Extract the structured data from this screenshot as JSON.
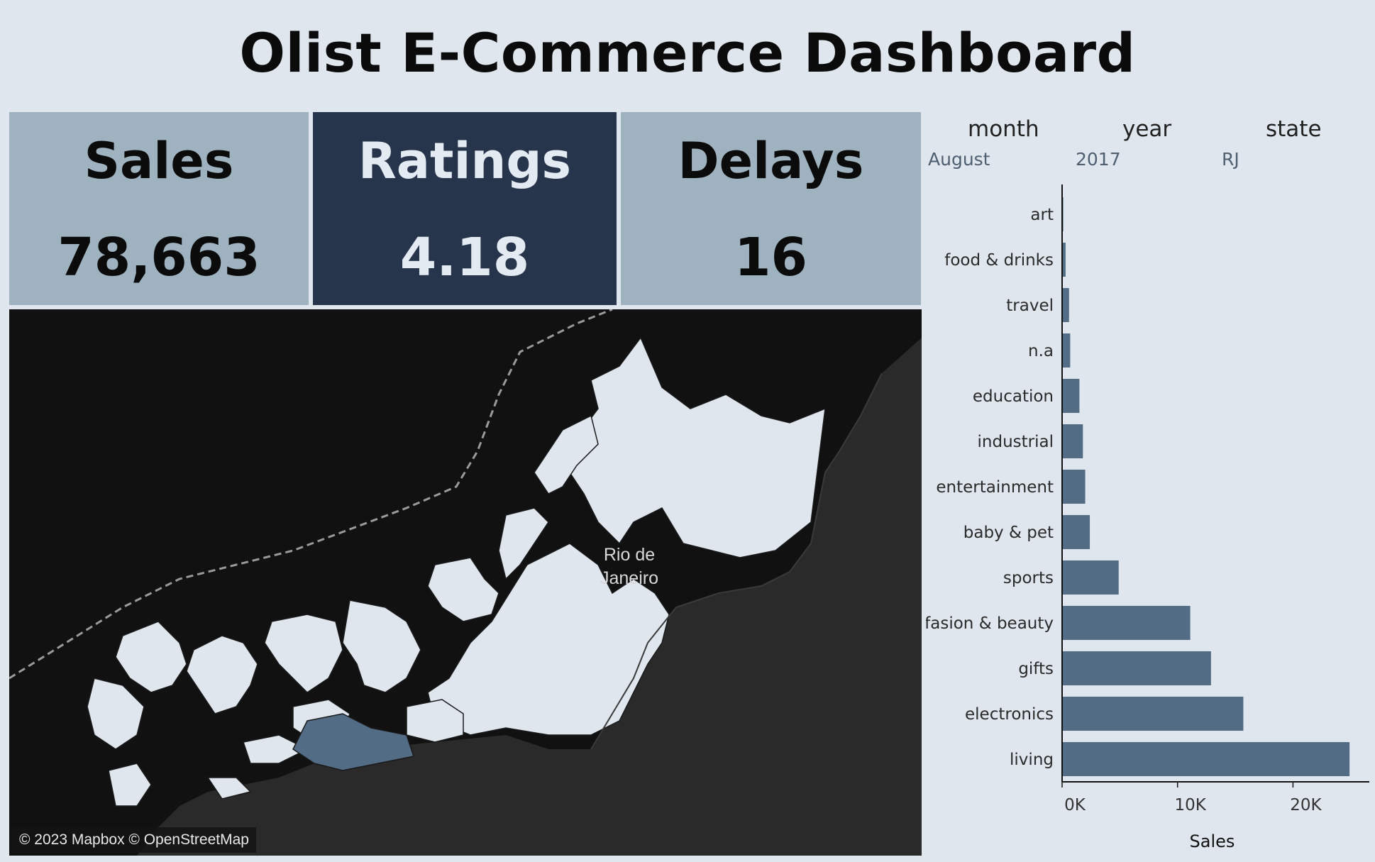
{
  "title": "Olist E-Commerce Dashboard",
  "kpis": {
    "sales": {
      "label": "Sales",
      "value": "78,663"
    },
    "ratings": {
      "label": "Ratings",
      "value": "4.18"
    },
    "delays": {
      "label": "Delays",
      "value": "16"
    }
  },
  "filters": {
    "month": {
      "label": "month",
      "value": "August"
    },
    "year": {
      "label": "year",
      "value": "2017"
    },
    "state": {
      "label": "state",
      "value": "RJ"
    }
  },
  "map": {
    "city_label_line1": "Rio de",
    "city_label_line2": "Janeiro",
    "attribution": "© 2023 Mapbox © OpenStreetMap",
    "colors": {
      "sea": "#2a2a2a",
      "land": "#111111",
      "region": "#dfe6ee",
      "highlight": "#526c85"
    }
  },
  "chart_data": {
    "type": "bar",
    "orientation": "horizontal",
    "categories": [
      "art",
      "food & drinks",
      "travel",
      "n.a",
      "education",
      "industrial",
      "entertainment",
      "baby & pet",
      "sports",
      "fasion & beauty",
      "gifts",
      "electronics",
      "living"
    ],
    "values": [
      100,
      300,
      600,
      700,
      1500,
      1800,
      2000,
      2400,
      4900,
      11100,
      12900,
      15700,
      24900
    ],
    "xlabel": "Sales",
    "xlim": [
      0,
      26000
    ],
    "ticks": [
      0,
      10000,
      20000
    ],
    "tick_labels": [
      "0K",
      "10K",
      "20K"
    ],
    "bar_color": "#526c85",
    "grid": false
  }
}
